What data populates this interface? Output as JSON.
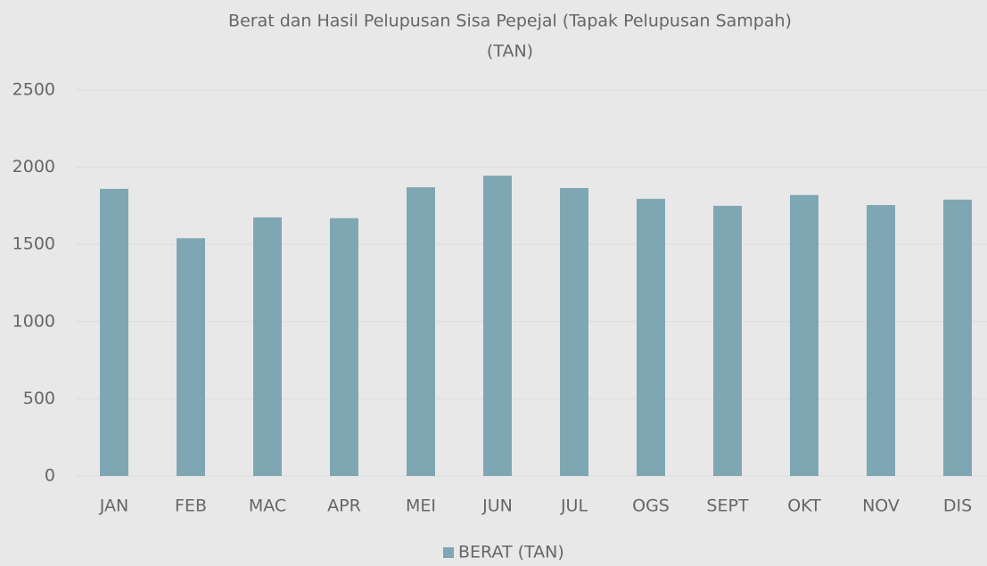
{
  "chart_data": {
    "type": "bar",
    "title": [
      "Berat dan Hasil Pelupusan Sisa Pepejal (Tapak Pelupusan Sampah)",
      "(TAN)"
    ],
    "categories": [
      "JAN",
      "FEB",
      "MAC",
      "APR",
      "MEI",
      "JUN",
      "JUL",
      "OGS",
      "SEPT",
      "OKT",
      "NOV",
      "DIS"
    ],
    "series": [
      {
        "name": "BERAT (TAN)",
        "color": "#7fa7b3",
        "values": [
          1860,
          1540,
          1675,
          1670,
          1870,
          1945,
          1865,
          1795,
          1750,
          1820,
          1755,
          1790
        ]
      }
    ],
    "ylim": [
      0,
      2500
    ],
    "yticks": [
      0,
      500,
      1000,
      1500,
      2000,
      2500
    ],
    "grid": true,
    "legend": "bottom"
  }
}
